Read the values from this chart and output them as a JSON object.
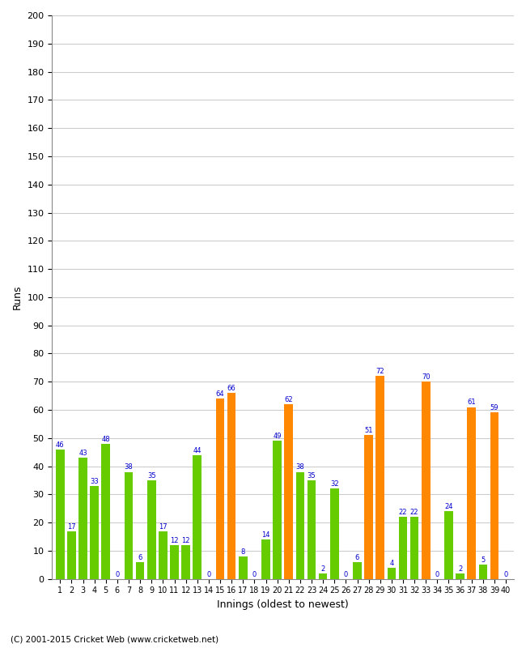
{
  "runs": [
    46,
    17,
    43,
    33,
    48,
    0,
    38,
    6,
    35,
    17,
    12,
    12,
    44,
    0,
    64,
    66,
    8,
    0,
    14,
    49,
    62,
    38,
    35,
    2,
    32,
    0,
    6,
    51,
    72,
    4,
    22,
    22,
    70,
    0,
    24,
    2,
    61,
    5,
    59,
    0
  ],
  "colors": [
    "G",
    "G",
    "G",
    "G",
    "G",
    "G",
    "G",
    "G",
    "G",
    "G",
    "G",
    "G",
    "G",
    "G",
    "O",
    "O",
    "G",
    "G",
    "G",
    "G",
    "O",
    "G",
    "G",
    "G",
    "G",
    "G",
    "G",
    "O",
    "O",
    "G",
    "G",
    "G",
    "O",
    "G",
    "G",
    "G",
    "O",
    "G",
    "O",
    "O"
  ],
  "color_green": "#66cc00",
  "color_orange": "#ff8800",
  "xlabel": "Innings (oldest to newest)",
  "ylabel": "Runs",
  "ylim": [
    0,
    200
  ],
  "yticks": [
    0,
    10,
    20,
    30,
    40,
    50,
    60,
    70,
    80,
    90,
    100,
    110,
    120,
    130,
    140,
    150,
    160,
    170,
    180,
    190,
    200
  ],
  "label_color": "#0000cc",
  "grid_color": "#cccccc",
  "bg_color": "#ffffff",
  "footnote": "(C) 2001-2015 Cricket Web (www.cricketweb.net)"
}
